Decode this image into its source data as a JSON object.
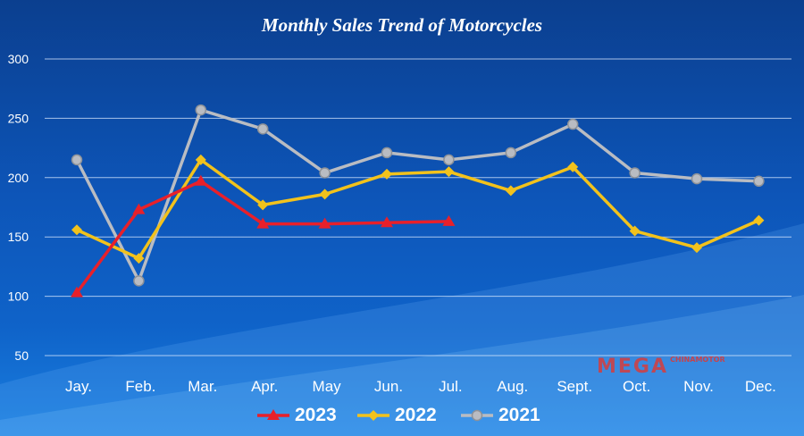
{
  "chart_data": {
    "type": "line",
    "title": "Monthly Sales Trend of Motorcycles",
    "categories": [
      "Jay.",
      "Feb.",
      "Mar.",
      "Apr.",
      "May",
      "Jun.",
      "Jul.",
      "Aug.",
      "Sept.",
      "Oct.",
      "Nov.",
      "Dec."
    ],
    "yticks": [
      50,
      100,
      150,
      200,
      250,
      300
    ],
    "ylim": [
      50,
      300
    ],
    "grid": true,
    "legend_position": "bottom",
    "series": [
      {
        "name": "2023",
        "color": "#e8202a",
        "marker": "triangle",
        "values": [
          103,
          173,
          197,
          161,
          161,
          162,
          163,
          null,
          null,
          null,
          null,
          null
        ]
      },
      {
        "name": "2022",
        "color": "#f2c21c",
        "marker": "diamond",
        "values": [
          156,
          132,
          215,
          177,
          186,
          203,
          205,
          189,
          209,
          155,
          141,
          164
        ]
      },
      {
        "name": "2021",
        "color": "#b9bcc2",
        "marker": "circle",
        "values": [
          215,
          113,
          257,
          241,
          204,
          221,
          215,
          221,
          245,
          204,
          199,
          197
        ]
      }
    ]
  },
  "watermark": {
    "brand": "MEGA",
    "sub": "CHINAMOTOR"
  }
}
